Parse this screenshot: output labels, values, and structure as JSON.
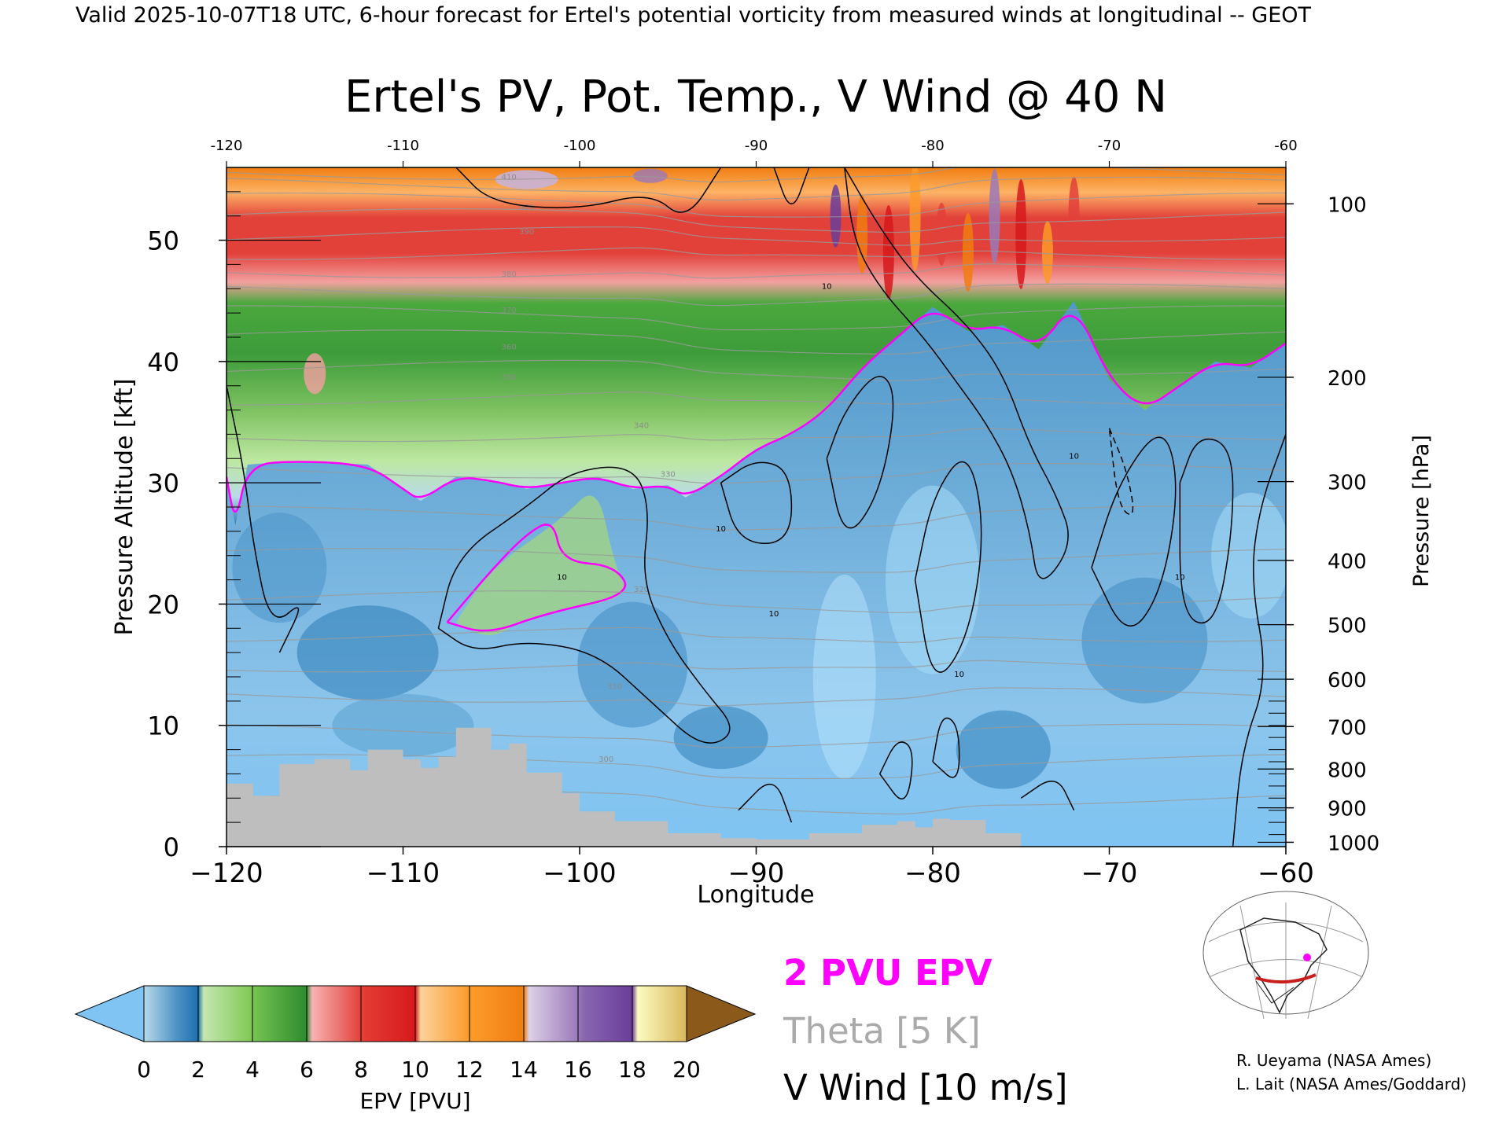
{
  "header": {
    "valid_line": "Valid 2025-10-07T18 UTC, 6-hour forecast for Ertel's potential vorticity from measured winds at longitudinal -- GEOT"
  },
  "chart_data": {
    "type": "heatmap",
    "title": "Ertel's PV, Pot. Temp., V Wind @ 40 N",
    "xlabel": "Longitude",
    "ylabel_left": "Pressure Altitude [kft]",
    "ylabel_right": "Pressure [hPa]",
    "xlim": [
      -120,
      -60
    ],
    "ylim": [
      0,
      56
    ],
    "x_ticks": [
      -120,
      -110,
      -100,
      -90,
      -80,
      -70,
      -60
    ],
    "x_tick_labels": [
      "−120",
      "−110",
      "−100",
      "−90",
      "−80",
      "−70",
      "−60"
    ],
    "top_tick_labels": [
      "-120",
      "-110",
      "-100",
      "-90",
      "-80",
      "-70",
      "-60"
    ],
    "y_ticks_kft": [
      0,
      10,
      20,
      30,
      40,
      50
    ],
    "pressure_ticks": [
      {
        "hpa": "100",
        "kft": 53.0
      },
      {
        "hpa": "200",
        "kft": 38.7
      },
      {
        "hpa": "300",
        "kft": 30.1
      },
      {
        "hpa": "400",
        "kft": 23.6
      },
      {
        "hpa": "500",
        "kft": 18.3
      },
      {
        "hpa": "600",
        "kft": 13.8
      },
      {
        "hpa": "700",
        "kft": 9.9
      },
      {
        "hpa": "800",
        "kft": 6.4
      },
      {
        "hpa": "900",
        "kft": 3.2
      },
      {
        "hpa": "1000",
        "kft": 0.36
      }
    ],
    "epv_2pvu_kft": [
      [
        -120,
        30.5
      ],
      [
        -119.5,
        26.5
      ],
      [
        -118.8,
        31.5
      ],
      [
        -116,
        31.8
      ],
      [
        -112,
        31.5
      ],
      [
        -110,
        29.5
      ],
      [
        -109,
        28.5
      ],
      [
        -107,
        30.5
      ],
      [
        -105,
        30.2
      ],
      [
        -103,
        29.5
      ],
      [
        -101,
        30
      ],
      [
        -99,
        30.5
      ],
      [
        -97,
        29.5
      ],
      [
        -95,
        29.8
      ],
      [
        -94,
        28.8
      ],
      [
        -92,
        30.5
      ],
      [
        -90,
        32.8
      ],
      [
        -88,
        34
      ],
      [
        -86,
        36
      ],
      [
        -84,
        39.5
      ],
      [
        -82,
        42
      ],
      [
        -80,
        44.5
      ],
      [
        -78,
        42.5
      ],
      [
        -76,
        43
      ],
      [
        -74,
        41
      ],
      [
        -72,
        45
      ],
      [
        -70,
        38.5
      ],
      [
        -68,
        36
      ],
      [
        -66,
        38
      ],
      [
        -64,
        40
      ],
      [
        -62,
        39.5
      ],
      [
        -60,
        41.5
      ]
    ],
    "terrain_kft": [
      [
        -120,
        5.2
      ],
      [
        -118.5,
        4.2
      ],
      [
        -117,
        6.8
      ],
      [
        -115,
        7.2
      ],
      [
        -113,
        6.3
      ],
      [
        -112,
        8
      ],
      [
        -110,
        7.2
      ],
      [
        -109,
        6.5
      ],
      [
        -108,
        7.4
      ],
      [
        -107,
        9.8
      ],
      [
        -105,
        8
      ],
      [
        -104,
        8.5
      ],
      [
        -103,
        6.1
      ],
      [
        -101,
        4.4
      ],
      [
        -100,
        2.9
      ],
      [
        -98,
        2.1
      ],
      [
        -95,
        1.1
      ],
      [
        -92,
        0.7
      ],
      [
        -90,
        0.6
      ],
      [
        -87,
        1.1
      ],
      [
        -84,
        1.8
      ],
      [
        -82,
        2.1
      ],
      [
        -81,
        1.6
      ],
      [
        -80,
        2.3
      ],
      [
        -79,
        2.2
      ],
      [
        -77,
        1.1
      ],
      [
        -75,
        0.8
      ]
    ],
    "theta_labels": [
      "410",
      "400",
      "390",
      "380",
      "370",
      "360",
      "350",
      "340",
      "330",
      "320",
      "310",
      "300"
    ],
    "vwind_contour_label": "10",
    "colorbar": {
      "label": "EPV [PVU]",
      "ticks": [
        "0",
        "2",
        "4",
        "6",
        "8",
        "10",
        "12",
        "14",
        "16",
        "18",
        "20"
      ],
      "colors": [
        "#8ccff7",
        "#b8d9e8",
        "#1f6fae",
        "#bde8a2",
        "#86cc5d",
        "#4aa83d",
        "#2e8b2e",
        "#f5a3a3",
        "#e2413a",
        "#d7191c",
        "#fdc07a",
        "#fb9a29",
        "#f07d10",
        "#c7b2d6",
        "#9a79b9",
        "#6a3d9a",
        "#fbf59b",
        "#d9b85c"
      ],
      "under_color": "#7fc4f2",
      "over_color": "#8b5a1b"
    }
  },
  "legend": {
    "epv_line": "2 PVU EPV",
    "theta_line": "Theta [5 K]",
    "vwind_line": "V Wind [10 m/s]",
    "epv_color": "#ff00ff",
    "theta_color": "#aaaaaa"
  },
  "credits": {
    "line1": "R. Ueyama (NASA Ames)",
    "line2": "L. Lait (NASA Ames/Goddard)"
  }
}
